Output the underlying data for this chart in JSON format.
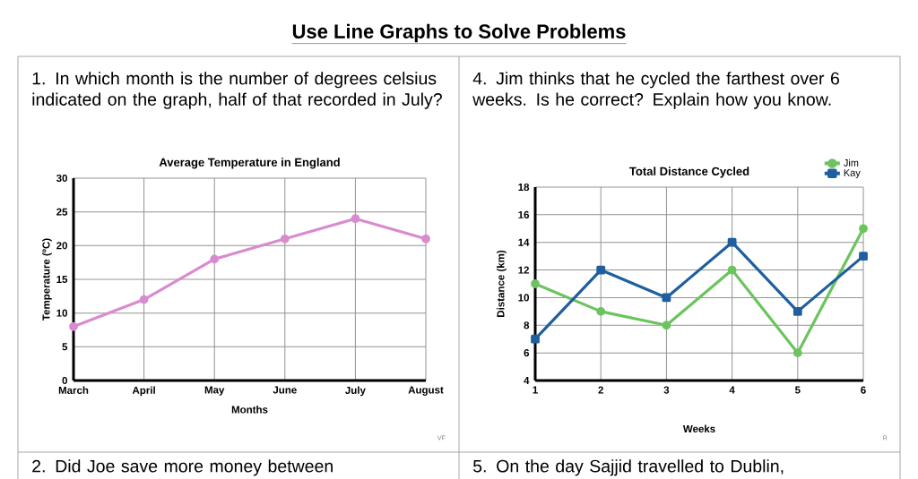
{
  "chart_data": [
    {
      "type": "line",
      "title": "Average Temperature in England",
      "xlabel": "Months",
      "ylabel": "Temperature (ºC)",
      "categories": [
        "March",
        "April",
        "May",
        "June",
        "July",
        "August"
      ],
      "values": [
        8,
        12,
        18,
        21,
        24,
        21
      ],
      "color": "#d98bcf",
      "marker": "circle",
      "ylim": [
        0,
        30
      ],
      "yticks": [
        0,
        5,
        10,
        15,
        20,
        25,
        30
      ],
      "grid": true,
      "annotations": [
        "Use Line Graphs to Solve Problems",
        "1. In which month is the number of degrees celsius indicated on the graph, half of that recorded in July?",
        "VF",
        "2. Did Joe save more money between"
      ]
    },
    {
      "type": "line",
      "title": "Total Distance Cycled",
      "xlabel": "Weeks",
      "ylabel": "Distance (km)",
      "x": [
        1,
        2,
        3,
        4,
        5,
        6
      ],
      "series": [
        {
          "name": "Jim",
          "color": "#6cc35f",
          "values": [
            11,
            9,
            8,
            12,
            6,
            15
          ],
          "marker": "circle"
        },
        {
          "name": "Kay",
          "color": "#1f5f9f",
          "values": [
            7,
            12,
            10,
            14,
            9,
            13
          ],
          "marker": "square"
        }
      ],
      "xlim": [
        1,
        6
      ],
      "xticks": [
        1,
        2,
        3,
        4,
        5,
        6
      ],
      "ylim": [
        4,
        18
      ],
      "yticks": [
        4,
        6,
        8,
        10,
        12,
        14,
        16,
        18
      ],
      "grid": true,
      "legend": "top right",
      "annotations": [
        "4. Jim thinks that he cycled the farthest over 6 weeks.  Is he correct?  Explain how you know.",
        "R",
        "5. On the day Sajjid travelled to Dublin,"
      ]
    }
  ]
}
